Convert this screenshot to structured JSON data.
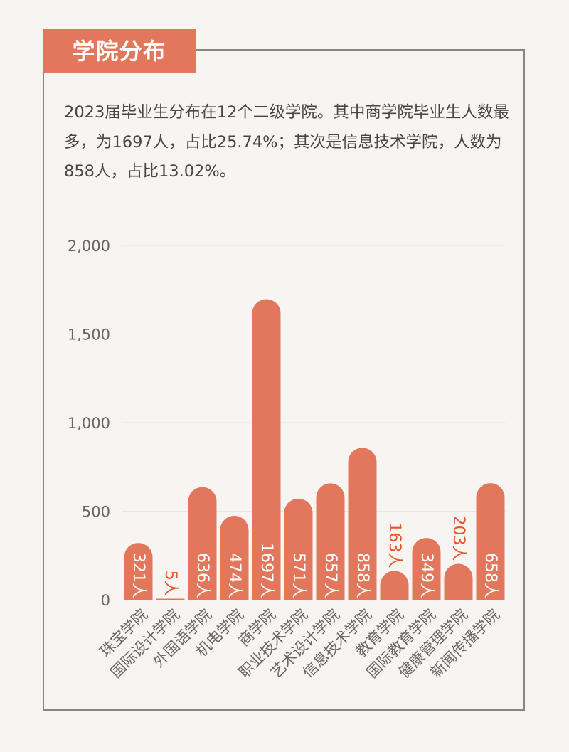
{
  "header": {
    "title": "学院分布"
  },
  "summary": {
    "text": "2023届毕业生分布在12个二级学院。其中商学院毕业生人数最多，为1697人，占比25.74%；其次是信息技术学院，人数为858人，占比13.02%。"
  },
  "colors": {
    "accent": "#e2775c",
    "bar": "#e2775c",
    "label_inside": "#ffffff",
    "label_outside": "#e2562d",
    "axis_text": "#6b6563",
    "border": "#8c8482",
    "background": "#f8f4f1"
  },
  "chart_data": {
    "type": "bar",
    "categories": [
      "珠宝学院",
      "国际设计学院",
      "外国语学院",
      "机电学院",
      "商学院",
      "职业技术学院",
      "艺术设计学院",
      "信息技术学院",
      "教育学院",
      "国际教育学院",
      "健康管理学院",
      "新闻传播学院"
    ],
    "values": [
      321,
      5,
      636,
      474,
      1697,
      571,
      657,
      858,
      163,
      349,
      203,
      658
    ],
    "data_labels": [
      "321人",
      "5人",
      "636人",
      "474人",
      "1697人",
      "571人",
      "657人",
      "858人",
      "163人",
      "349人",
      "203人",
      "658人"
    ],
    "label_outside": [
      false,
      true,
      false,
      false,
      false,
      false,
      false,
      false,
      true,
      false,
      true,
      false
    ],
    "yticks": [
      0,
      500,
      1000,
      1500,
      2000
    ],
    "ytick_labels": [
      "0",
      "500",
      "1,000",
      "1,500",
      "2,000"
    ],
    "ylim": [
      0,
      2000
    ],
    "xlabel": "",
    "ylabel": "",
    "grid": true,
    "legend": "none"
  }
}
